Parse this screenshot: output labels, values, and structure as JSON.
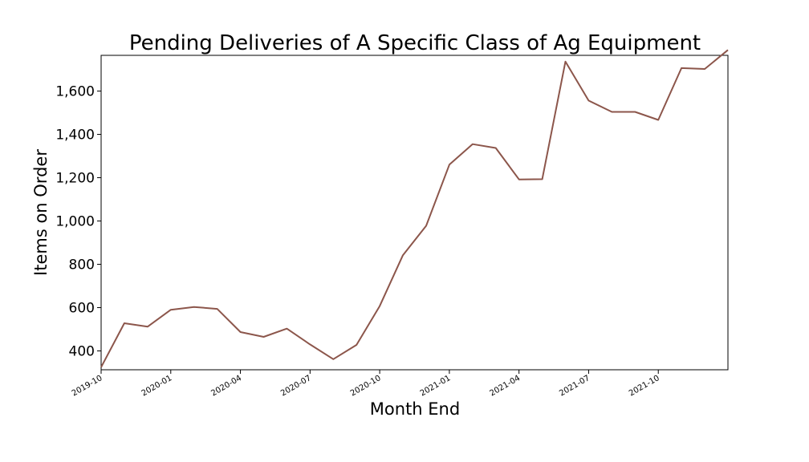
{
  "chart_data": {
    "type": "line",
    "title": "Pending Deliveries of A Specific Class of Ag Equipment",
    "xlabel": "Month End",
    "ylabel": "Items on Order",
    "x": [
      "2019-10",
      "2019-11",
      "2019-12",
      "2020-01",
      "2020-02",
      "2020-03",
      "2020-04",
      "2020-05",
      "2020-06",
      "2020-07",
      "2020-08",
      "2020-09",
      "2020-10",
      "2020-11",
      "2020-12",
      "2021-01",
      "2021-02",
      "2021-03",
      "2021-04",
      "2021-05",
      "2021-06",
      "2021-07",
      "2021-08",
      "2021-09",
      "2021-10",
      "2021-11",
      "2021-12",
      "2022-01"
    ],
    "values": [
      325,
      528,
      512,
      590,
      603,
      594,
      487,
      465,
      503,
      430,
      362,
      428,
      607,
      842,
      978,
      1260,
      1355,
      1337,
      1192,
      1193,
      1736,
      1556,
      1504,
      1504,
      1467,
      1706,
      1702,
      1790
    ],
    "xticks": [
      "2019-10",
      "2020-01",
      "2020-04",
      "2020-07",
      "2020-10",
      "2021-01",
      "2021-04",
      "2021-07",
      "2021-10"
    ],
    "yticks": [
      400,
      600,
      800,
      1000,
      1200,
      1400,
      1600
    ],
    "ylim": [
      313,
      1765
    ],
    "line_color": "#8c564b",
    "grid": false,
    "legend": false
  }
}
